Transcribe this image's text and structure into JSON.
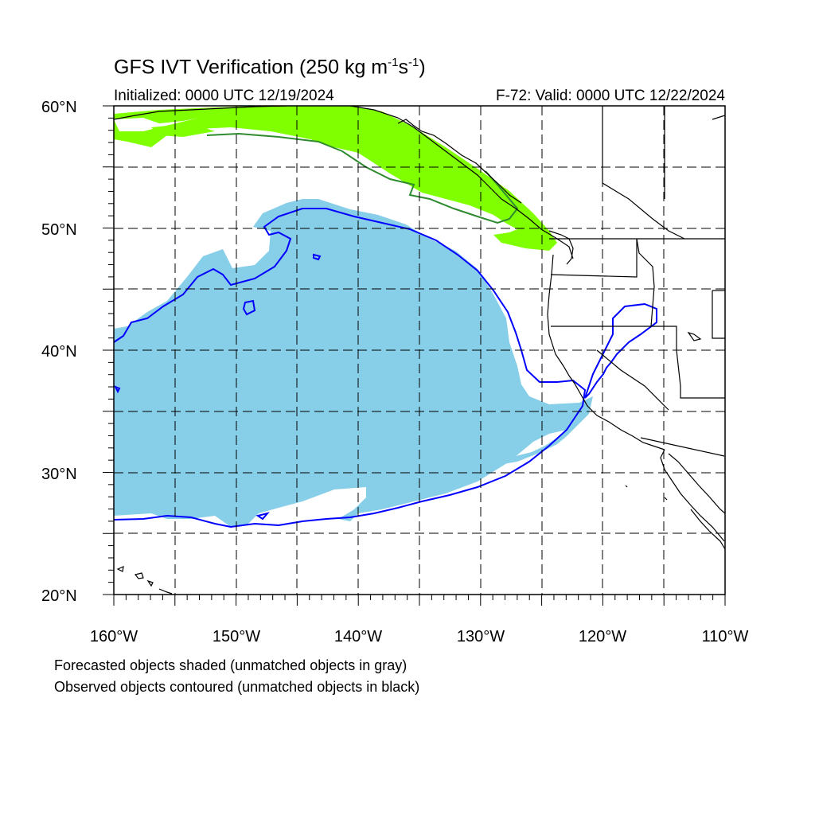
{
  "header": {
    "title_main": "GFS IVT Verification (250 kg m",
    "title_exp1": "-1",
    "title_mid": "s",
    "title_exp2": "-1",
    "title_end": ")",
    "initialized": "Initialized: 0000 UTC 12/19/2024",
    "valid": "F-72: Valid: 0000 UTC 12/22/2024"
  },
  "axes": {
    "lat_labels": [
      "60°N",
      "50°N",
      "40°N",
      "30°N",
      "20°N"
    ],
    "lon_labels": [
      "160°W",
      "150°W",
      "140°W",
      "130°W",
      "120°W",
      "110°W"
    ],
    "lat_range": [
      20,
      60
    ],
    "lon_range": [
      -160,
      -110
    ],
    "grid": "dashed, every 5 degrees"
  },
  "legend": {
    "forecast_note": "Forecasted objects shaded (unmatched objects in gray)",
    "observed_note": "Observed objects contoured (unmatched objects in black)"
  },
  "colors": {
    "forecast_object_1": "#87CEE8",
    "forecast_object_2": "#80FF00",
    "observed_object_1": "#0000FF",
    "observed_object_2": "#2E8B2E",
    "coastline": "#000000",
    "grid": "#000000"
  }
}
